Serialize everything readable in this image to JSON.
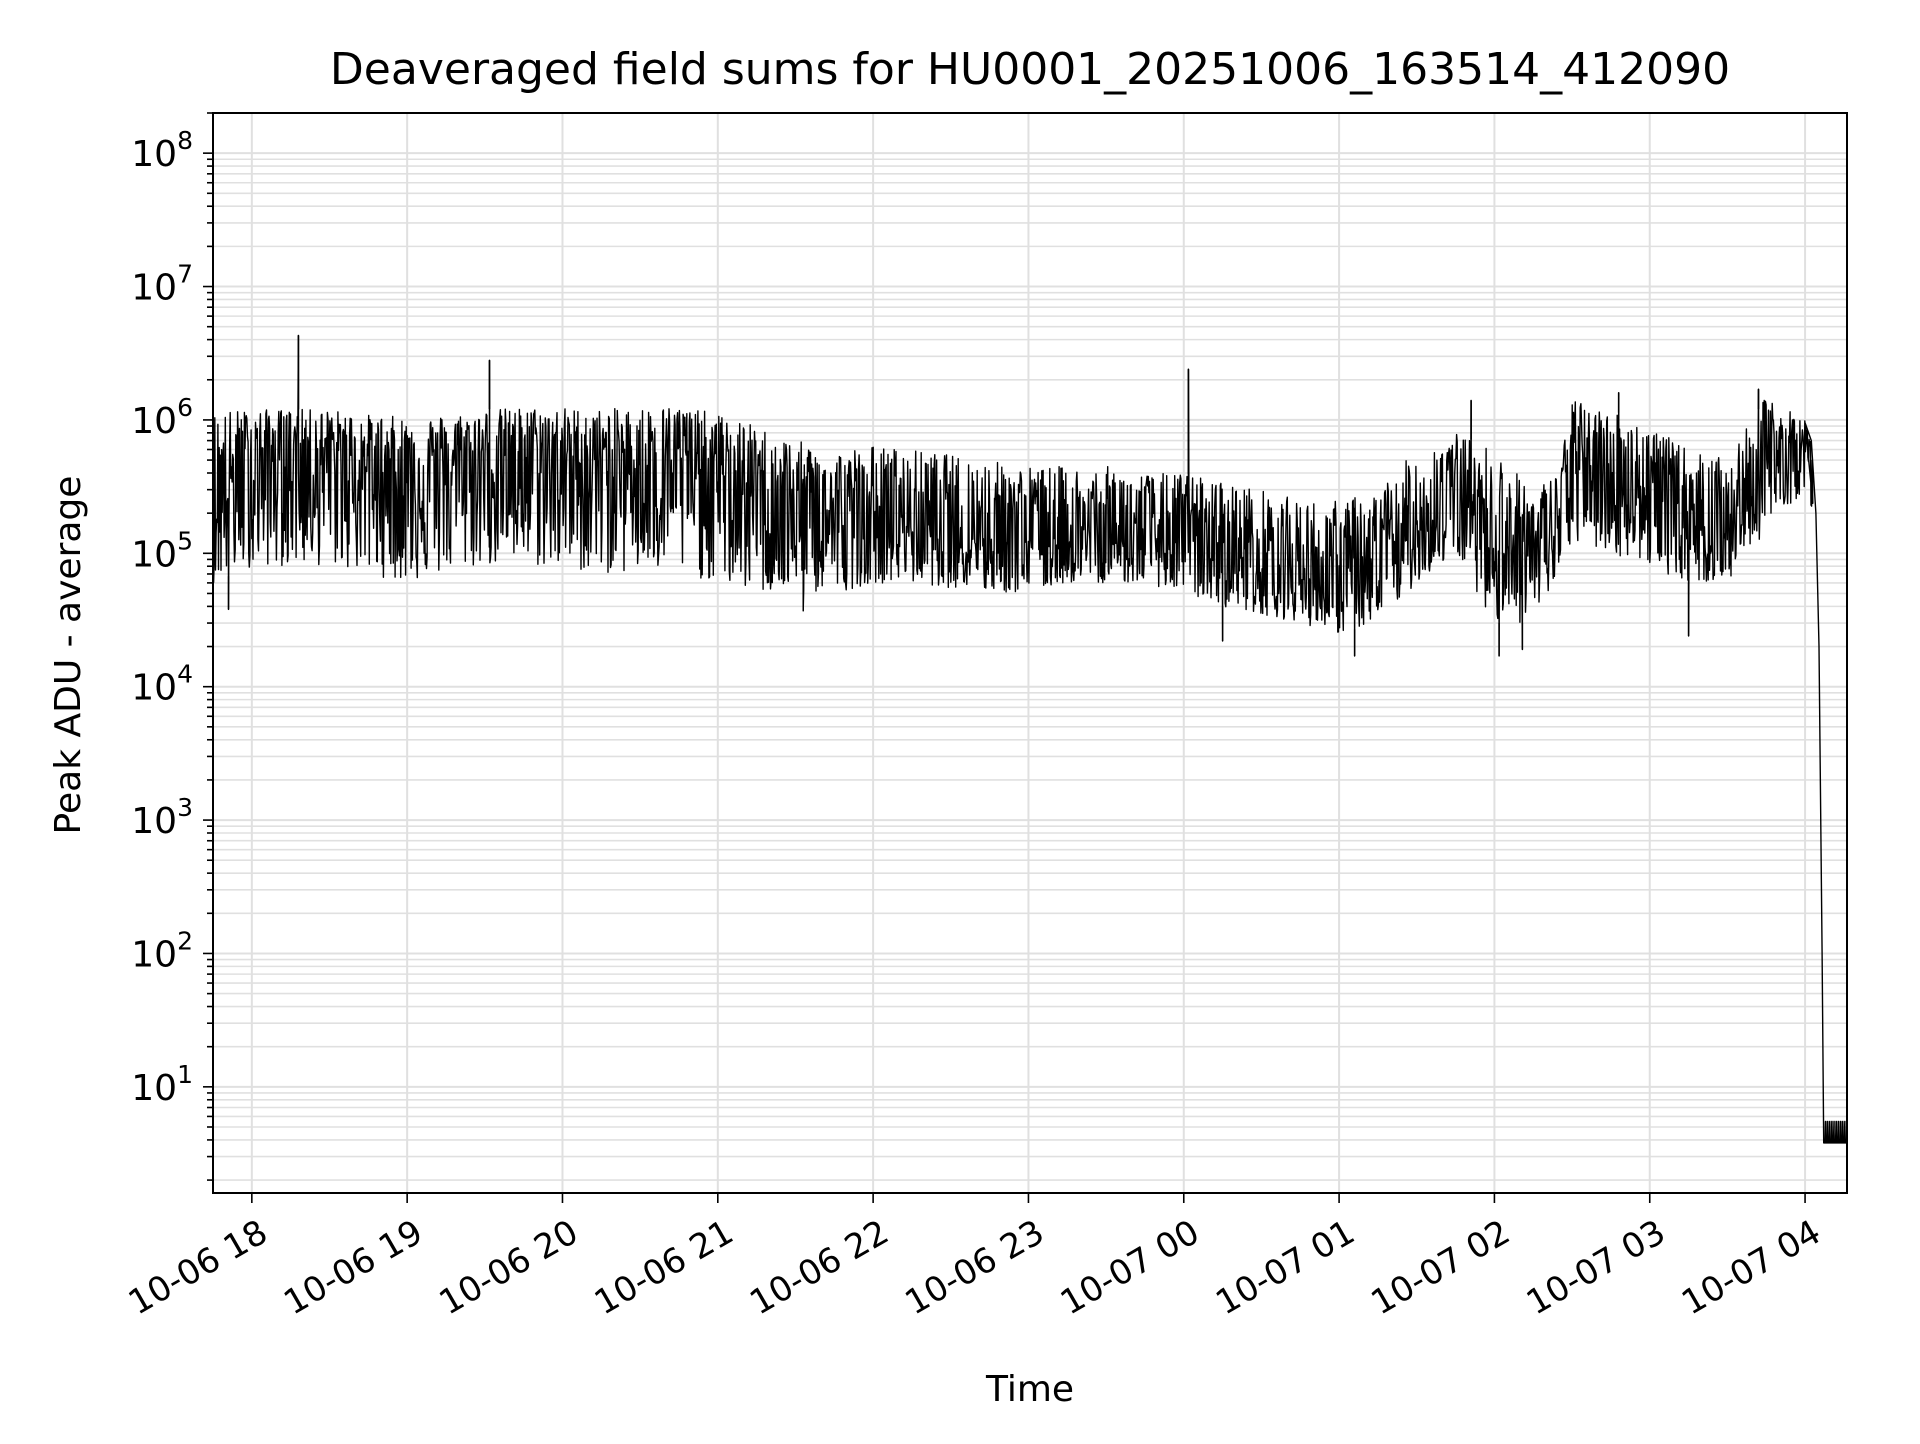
{
  "chart_data": {
    "type": "line",
    "title": "Deaveraged field sums for HU0001_20251006_163514_412090",
    "xlabel": "Time",
    "ylabel": "Peak ADU - average",
    "yscale": "log",
    "ylim": [
      1.6,
      200000000
    ],
    "xlim_hours": [
      17.75,
      28.27
    ],
    "grid": true,
    "colors": {
      "line": "#000000",
      "grid": "#e0e0e0",
      "axes": "#000000",
      "background": "#ffffff"
    },
    "x_ticks": [
      {
        "label": "10-06 18",
        "hours": 18
      },
      {
        "label": "10-06 19",
        "hours": 19
      },
      {
        "label": "10-06 20",
        "hours": 20
      },
      {
        "label": "10-06 21",
        "hours": 21
      },
      {
        "label": "10-06 22",
        "hours": 22
      },
      {
        "label": "10-06 23",
        "hours": 23
      },
      {
        "label": "10-07 00",
        "hours": 24
      },
      {
        "label": "10-07 01",
        "hours": 25
      },
      {
        "label": "10-07 02",
        "hours": 26
      },
      {
        "label": "10-07 03",
        "hours": 27
      },
      {
        "label": "10-07 04",
        "hours": 28
      }
    ],
    "y_ticks": [
      {
        "base": "10",
        "exp": "1",
        "value": 10
      },
      {
        "base": "10",
        "exp": "2",
        "value": 100
      },
      {
        "base": "10",
        "exp": "3",
        "value": 1000
      },
      {
        "base": "10",
        "exp": "4",
        "value": 10000
      },
      {
        "base": "10",
        "exp": "5",
        "value": 100000
      },
      {
        "base": "10",
        "exp": "6",
        "value": 1000000
      },
      {
        "base": "10",
        "exp": "7",
        "value": 10000000
      },
      {
        "base": "10",
        "exp": "8",
        "value": 100000000
      }
    ],
    "series": [
      {
        "name": "Deaveraged field sums",
        "envelope": {
          "hours": [
            17.75,
            18.0,
            18.25,
            18.5,
            18.75,
            19.0,
            19.25,
            19.5,
            19.75,
            20.0,
            20.25,
            20.5,
            20.75,
            21.0,
            21.25,
            21.5,
            21.75,
            22.0,
            22.25,
            22.5,
            22.75,
            23.0,
            23.25,
            23.5,
            23.75,
            24.0,
            24.25,
            24.5,
            24.75,
            25.0,
            25.25,
            25.5,
            25.75,
            26.0,
            26.25,
            26.4,
            26.5,
            26.75,
            27.0,
            27.25,
            27.5,
            27.75,
            28.0,
            28.05
          ],
          "median": [
            250000,
            500000,
            600000,
            550000,
            450000,
            420000,
            450000,
            500000,
            520000,
            500000,
            480000,
            500000,
            520000,
            400000,
            280000,
            200000,
            170000,
            180000,
            170000,
            160000,
            150000,
            140000,
            130000,
            130000,
            120000,
            130000,
            110000,
            90000,
            70000,
            60000,
            70000,
            150000,
            300000,
            150000,
            100000,
            150000,
            500000,
            350000,
            300000,
            200000,
            150000,
            500000,
            650000,
            400000
          ],
          "low": [
            60000,
            80000,
            80000,
            80000,
            70000,
            60000,
            70000,
            80000,
            80000,
            75000,
            70000,
            70000,
            70000,
            60000,
            50000,
            50000,
            50000,
            60000,
            60000,
            55000,
            50000,
            50000,
            60000,
            60000,
            60000,
            50000,
            40000,
            35000,
            30000,
            25000,
            30000,
            60000,
            100000,
            30000,
            30000,
            60000,
            120000,
            100000,
            80000,
            60000,
            60000,
            150000,
            300000,
            200000
          ],
          "high": [
            1200000,
            1200000,
            1200000,
            1200000,
            1100000,
            1050000,
            1100000,
            1200000,
            1250000,
            1250000,
            1200000,
            1250000,
            1300000,
            1100000,
            900000,
            700000,
            600000,
            650000,
            600000,
            550000,
            500000,
            450000,
            450000,
            450000,
            400000,
            400000,
            350000,
            300000,
            250000,
            250000,
            300000,
            600000,
            800000,
            600000,
            300000,
            400000,
            1400000,
            1200000,
            900000,
            600000,
            500000,
            1500000,
            1000000,
            700000
          ]
        },
        "spikes": [
          {
            "hours": 18.3,
            "value": 4300000
          },
          {
            "hours": 19.53,
            "value": 2800000
          },
          {
            "hours": 24.03,
            "value": 2400000
          },
          {
            "hours": 25.85,
            "value": 1400000
          },
          {
            "hours": 26.8,
            "value": 1600000
          },
          {
            "hours": 27.7,
            "value": 1700000
          }
        ],
        "dips": [
          {
            "hours": 17.85,
            "value": 38000
          },
          {
            "hours": 21.55,
            "value": 37000
          },
          {
            "hours": 24.25,
            "value": 22000
          },
          {
            "hours": 25.1,
            "value": 17000
          },
          {
            "hours": 26.03,
            "value": 17000
          },
          {
            "hours": 26.18,
            "value": 19000
          },
          {
            "hours": 27.25,
            "value": 24000
          }
        ],
        "tail": [
          {
            "hours": 28.0,
            "value": 950000
          },
          {
            "hours": 28.04,
            "value": 700000
          },
          {
            "hours": 28.07,
            "value": 200000
          },
          {
            "hours": 28.09,
            "value": 20000
          },
          {
            "hours": 28.11,
            "value": 100
          },
          {
            "hours": 28.12,
            "value": 3.8
          },
          {
            "hours": 28.27,
            "value": 3.8
          }
        ]
      }
    ]
  }
}
